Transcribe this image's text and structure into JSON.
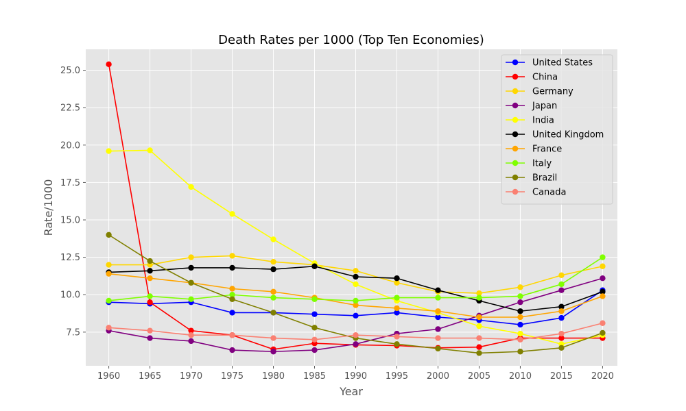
{
  "chart_data": {
    "type": "line",
    "title": "Death Rates per 1000 (Top Ten Economies)",
    "xlabel": "Year",
    "ylabel": "Rate/1000",
    "x": [
      1960,
      1965,
      1970,
      1975,
      1980,
      1985,
      1990,
      1995,
      2000,
      2005,
      2010,
      2015,
      2020
    ],
    "x_ticks": [
      "1960",
      "1965",
      "1970",
      "1975",
      "1980",
      "1985",
      "1990",
      "1995",
      "2000",
      "2005",
      "2010",
      "2015",
      "2020"
    ],
    "y_ticks": [
      "7.5",
      "10.0",
      "12.5",
      "15.0",
      "17.5",
      "20.0",
      "22.5",
      "25.0"
    ],
    "xlim": [
      1957.2,
      2021.8
    ],
    "ylim": [
      5.25,
      26.4
    ],
    "grid": true,
    "legend_position": "top-right",
    "background": "#e5e5e5",
    "series": [
      {
        "name": "United States",
        "color": "#0000ff",
        "values": [
          9.5,
          9.4,
          9.5,
          8.8,
          8.8,
          8.7,
          8.6,
          8.8,
          8.5,
          8.3,
          8.0,
          8.45,
          10.3
        ]
      },
      {
        "name": "China",
        "color": "#ff0000",
        "values": [
          25.4,
          9.5,
          7.6,
          7.3,
          6.35,
          6.75,
          6.65,
          6.6,
          6.45,
          6.5,
          7.1,
          7.1,
          7.1
        ]
      },
      {
        "name": "Germany",
        "color": "#ffd700",
        "values": [
          12.0,
          12.0,
          12.5,
          12.6,
          12.2,
          12.0,
          11.6,
          10.8,
          10.2,
          10.1,
          10.5,
          11.3,
          11.9
        ]
      },
      {
        "name": "Japan",
        "color": "#800080",
        "values": [
          7.6,
          7.1,
          6.9,
          6.3,
          6.2,
          6.3,
          6.7,
          7.4,
          7.7,
          8.6,
          9.5,
          10.3,
          11.1
        ]
      },
      {
        "name": "India",
        "color": "#ffff00",
        "values": [
          19.6,
          19.65,
          17.2,
          15.4,
          13.7,
          12.1,
          10.7,
          9.6,
          8.8,
          7.9,
          7.4,
          6.7,
          7.3
        ]
      },
      {
        "name": "United Kingdom",
        "color": "#000000",
        "values": [
          11.5,
          11.6,
          11.8,
          11.8,
          11.7,
          11.9,
          11.2,
          11.1,
          10.3,
          9.6,
          8.9,
          9.2,
          10.2
        ]
      },
      {
        "name": "France",
        "color": "#ffa500",
        "values": [
          11.4,
          11.1,
          10.8,
          10.4,
          10.2,
          9.8,
          9.3,
          9.1,
          8.9,
          8.5,
          8.5,
          8.9,
          9.9
        ]
      },
      {
        "name": "Italy",
        "color": "#7fff00",
        "values": [
          9.6,
          9.9,
          9.7,
          10.0,
          9.8,
          9.7,
          9.6,
          9.8,
          9.8,
          9.8,
          9.9,
          10.7,
          12.5
        ]
      },
      {
        "name": "Brazil",
        "color": "#808000",
        "values": [
          14.0,
          12.25,
          10.8,
          9.7,
          8.8,
          7.8,
          7.1,
          6.7,
          6.4,
          6.1,
          6.2,
          6.45,
          7.45
        ]
      },
      {
        "name": "Canada",
        "color": "#fa8072",
        "values": [
          7.8,
          7.6,
          7.3,
          7.3,
          7.1,
          7.0,
          7.3,
          7.2,
          7.1,
          7.1,
          7.0,
          7.4,
          8.1
        ]
      }
    ]
  }
}
